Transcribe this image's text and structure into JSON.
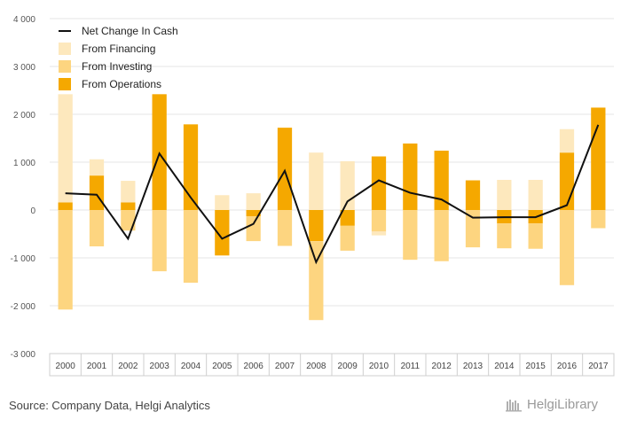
{
  "chart_data": {
    "type": "bar",
    "stacked": true,
    "categories": [
      "2000",
      "2001",
      "2002",
      "2003",
      "2004",
      "2005",
      "2006",
      "2007",
      "2008",
      "2009",
      "2010",
      "2011",
      "2012",
      "2013",
      "2014",
      "2015",
      "2016",
      "2017"
    ],
    "ylim": [
      -3000,
      4000
    ],
    "yticks": [
      -3000,
      -2000,
      -1000,
      0,
      1000,
      2000,
      3000,
      4000
    ],
    "ytick_labels": [
      "-3 000",
      "-2 000",
      "-1 000",
      "0",
      "1 000",
      "2 000",
      "3 000",
      "4 000"
    ],
    "grid": true,
    "legend_position": "top-left",
    "series": [
      {
        "name": "From Operations",
        "type": "bar",
        "color": "#f5a800",
        "values": [
          160,
          720,
          160,
          2420,
          1790,
          -950,
          -130,
          1720,
          -650,
          -330,
          1120,
          1390,
          1240,
          620,
          -280,
          -280,
          1200,
          2140
        ]
      },
      {
        "name": "From Investing",
        "type": "bar",
        "color": "#fdd580",
        "values": [
          -2080,
          -760,
          -430,
          -1280,
          -1520,
          0,
          -520,
          -750,
          -1650,
          -520,
          -450,
          -1040,
          -1070,
          -780,
          -520,
          -530,
          -1570,
          -380
        ]
      },
      {
        "name": "From Financing",
        "type": "bar",
        "color": "#fde8bd",
        "values": [
          2260,
          340,
          450,
          0,
          0,
          310,
          350,
          0,
          1200,
          1020,
          -80,
          0,
          0,
          0,
          630,
          630,
          490,
          0
        ]
      },
      {
        "name": "Net Change In Cash",
        "type": "line",
        "color": "#111111",
        "values": [
          350,
          320,
          -600,
          1180,
          260,
          -600,
          -290,
          820,
          -1090,
          180,
          620,
          360,
          220,
          -160,
          -150,
          -150,
          100,
          1780
        ]
      }
    ]
  },
  "legend": {
    "items": [
      {
        "label": "Net Change In Cash",
        "kind": "line",
        "color": "#111111"
      },
      {
        "label": "From Financing",
        "kind": "box",
        "color": "#fde8bd"
      },
      {
        "label": "From Investing",
        "kind": "box",
        "color": "#fdd580"
      },
      {
        "label": "From Operations",
        "kind": "box",
        "color": "#f5a800"
      }
    ]
  },
  "footer": {
    "source": "Source: Company Data, Helgi Analytics",
    "brand": "HelgiLibrary"
  }
}
